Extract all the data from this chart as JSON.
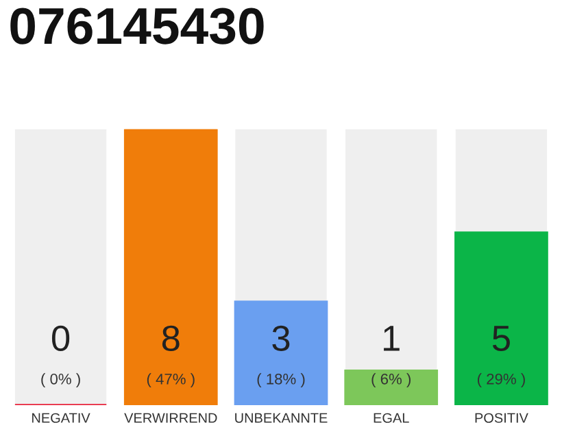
{
  "chart_data": {
    "type": "bar",
    "title": "076145430",
    "categories": [
      "NEGATIV",
      "VERWIRREND",
      "UNBEKANNTE",
      "EGAL",
      "POSITIV"
    ],
    "values": [
      0,
      8,
      3,
      1,
      5
    ],
    "colors": [
      "#e8243c",
      "#f07d0a",
      "#6a9ff0",
      "#7dc75a",
      "#0bb548"
    ],
    "value_labels": [
      "0\n( 0% )",
      "8\n( 47% )",
      "3\n( 18% )",
      "1\n( 6% )",
      "5\n( 29% )"
    ],
    "ylim": [
      0,
      8
    ],
    "tick_labels": "x",
    "grid": false,
    "legend": false,
    "bands": [
      {
        "axis": "x",
        "from": "NEGATIV",
        "to": "NEGATIV",
        "color": "#efefef"
      },
      {
        "axis": "x",
        "from": "UNBEKANNTE",
        "to": "UNBEKANNTE",
        "color": "#efefef"
      },
      {
        "axis": "x",
        "from": "EGAL",
        "to": "EGAL",
        "color": "#efefef"
      },
      {
        "axis": "x",
        "from": "POSITIV",
        "to": "POSITIV",
        "color": "#efefef"
      }
    ]
  }
}
